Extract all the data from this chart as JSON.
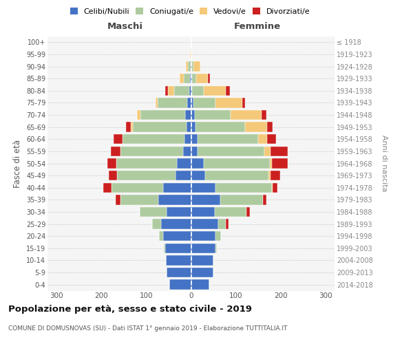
{
  "age_groups_bottom_to_top": [
    "0-4",
    "5-9",
    "10-14",
    "15-19",
    "20-24",
    "25-29",
    "30-34",
    "35-39",
    "40-44",
    "45-49",
    "50-54",
    "55-59",
    "60-64",
    "65-69",
    "70-74",
    "75-79",
    "80-84",
    "85-89",
    "90-94",
    "95-99",
    "100+"
  ],
  "birth_years_bottom_to_top": [
    "2014-2018",
    "2009-2013",
    "2004-2008",
    "1999-2003",
    "1994-1998",
    "1989-1993",
    "1984-1988",
    "1979-1983",
    "1974-1978",
    "1969-1973",
    "1964-1968",
    "1959-1963",
    "1954-1958",
    "1949-1953",
    "1944-1948",
    "1939-1943",
    "1934-1938",
    "1929-1933",
    "1924-1928",
    "1919-1923",
    "≤ 1918"
  ],
  "maschi": {
    "celibi": [
      48,
      54,
      56,
      58,
      62,
      67,
      55,
      73,
      62,
      35,
      32,
      17,
      15,
      10,
      13,
      8,
      4,
      2,
      1,
      0,
      0
    ],
    "coniugati": [
      0,
      0,
      0,
      2,
      10,
      20,
      60,
      85,
      115,
      130,
      135,
      140,
      138,
      120,
      100,
      66,
      33,
      14,
      6,
      1,
      0
    ],
    "vedovi": [
      0,
      0,
      0,
      0,
      0,
      0,
      0,
      0,
      0,
      0,
      0,
      0,
      0,
      5,
      8,
      5,
      15,
      10,
      4,
      1,
      0
    ],
    "divorziati": [
      0,
      0,
      0,
      0,
      0,
      0,
      0,
      10,
      18,
      18,
      20,
      22,
      20,
      10,
      0,
      0,
      5,
      0,
      0,
      0,
      0
    ]
  },
  "femmine": {
    "nubili": [
      40,
      50,
      50,
      55,
      55,
      60,
      53,
      65,
      55,
      32,
      28,
      15,
      15,
      10,
      8,
      5,
      3,
      2,
      1,
      0,
      0
    ],
    "coniugate": [
      0,
      0,
      0,
      2,
      12,
      18,
      70,
      95,
      125,
      140,
      148,
      148,
      135,
      110,
      80,
      50,
      25,
      10,
      5,
      1,
      0
    ],
    "vedove": [
      0,
      0,
      0,
      0,
      0,
      0,
      0,
      0,
      2,
      5,
      5,
      15,
      20,
      50,
      70,
      60,
      50,
      25,
      15,
      2,
      0
    ],
    "divorziate": [
      0,
      0,
      0,
      0,
      0,
      5,
      8,
      8,
      10,
      22,
      35,
      38,
      20,
      12,
      10,
      5,
      8,
      5,
      0,
      0,
      0
    ]
  },
  "colors": {
    "celibi": "#4472C4",
    "coniugati": "#AECBA0",
    "vedovi": "#F5C97A",
    "divorziati": "#CC2020"
  },
  "xlim": 320,
  "title": "Popolazione per età, sesso e stato civile - 2019",
  "subtitle": "COMUNE DI DOMUSNOVAS (SU) - Dati ISTAT 1° gennaio 2019 - Elaborazione TUTTITALIA.IT",
  "ylabel": "Fasce di età",
  "ylabel_right": "Anni di nascita",
  "bg_color": "#f5f5f5",
  "grid_color": "#cccccc"
}
